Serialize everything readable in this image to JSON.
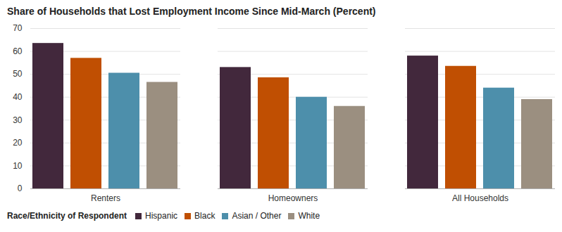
{
  "chart_data": {
    "type": "bar",
    "title": "Share of Households that Lost Employment Income Since Mid-March (Percent)",
    "categories": [
      "Renters",
      "Homeowners",
      "All Households"
    ],
    "series": [
      {
        "name": "Hispanic",
        "color": "#42283c",
        "values": [
          63.5,
          53,
          58
        ]
      },
      {
        "name": "Black",
        "color": "#c04f02",
        "values": [
          57,
          48.5,
          53.5
        ]
      },
      {
        "name": "Asian / Other",
        "color": "#4d8fab",
        "values": [
          50.5,
          40,
          44
        ]
      },
      {
        "name": "White",
        "color": "#9b8f80",
        "values": [
          46.5,
          36,
          39
        ]
      }
    ],
    "ylim": [
      0,
      70
    ],
    "yticks": [
      0,
      10,
      20,
      30,
      40,
      50,
      60,
      70
    ],
    "grid": true,
    "legend": "bottom-left",
    "legend_title": "Race/Ethnicity of Respondent"
  }
}
